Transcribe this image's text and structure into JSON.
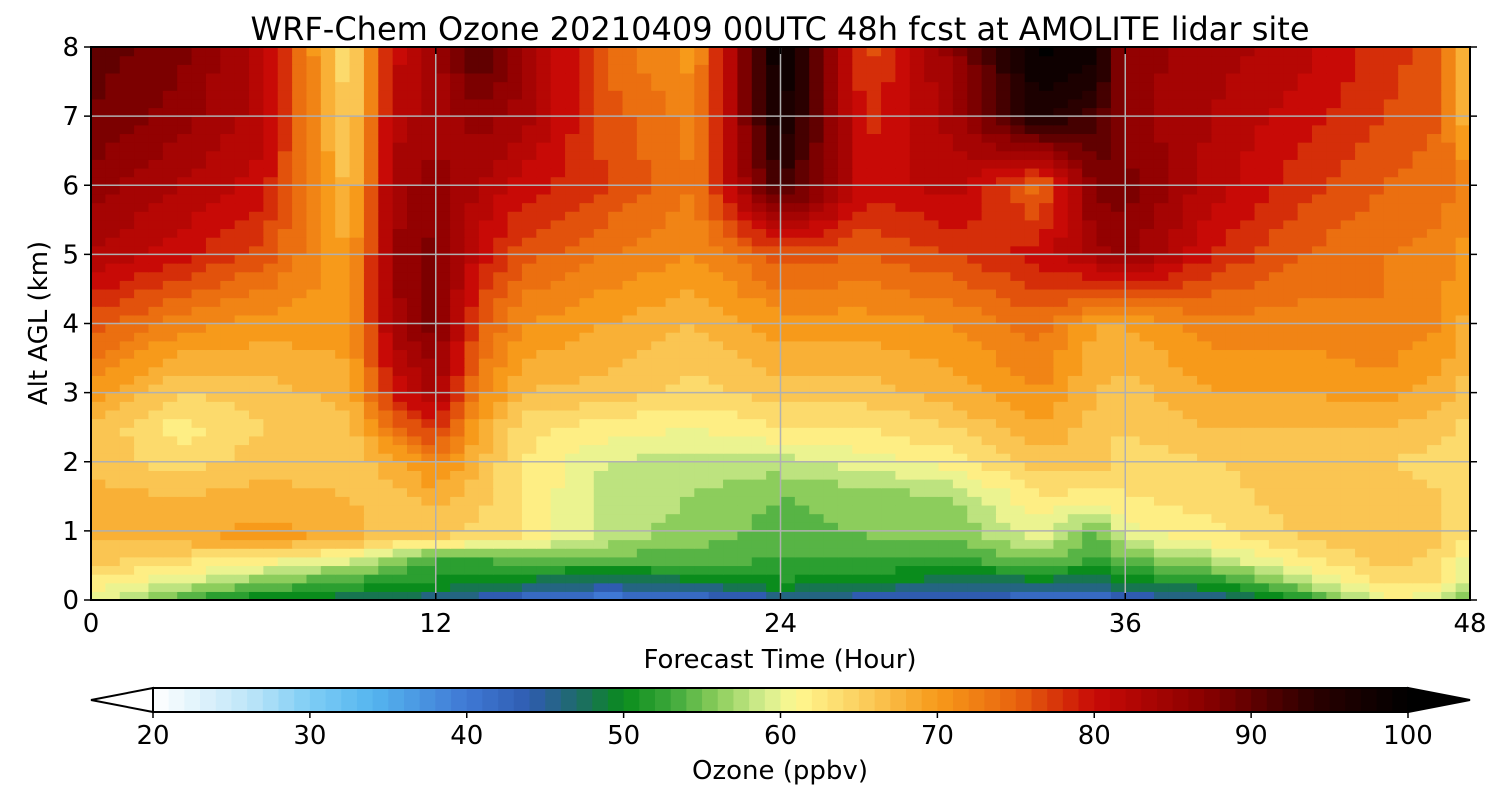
{
  "chart_data": {
    "type": "heatmap",
    "title": "WRF-Chem Ozone  20210409 00UTC 48h fcst at AMOLITE lidar site",
    "xlabel": "Forecast Time (Hour)",
    "ylabel": "Alt AGL (km)",
    "xlim": [
      0,
      48
    ],
    "ylim": [
      0,
      8
    ],
    "x_ticks": [
      "0",
      "12",
      "24",
      "36",
      "48"
    ],
    "y_ticks": [
      "0",
      "1",
      "2",
      "3",
      "4",
      "5",
      "6",
      "7",
      "8"
    ],
    "grid": true,
    "colorbar": {
      "label": "Ozone  (ppbv)",
      "orientation": "horizontal",
      "placement": "bottom",
      "range": [
        20,
        100
      ],
      "extend": "both",
      "ticks": [
        "20",
        "30",
        "40",
        "50",
        "60",
        "70",
        "80",
        "90",
        "100"
      ],
      "stops": [
        {
          "value": 20,
          "color": "#ffffff"
        },
        {
          "value": 26,
          "color": "#bfe6f8"
        },
        {
          "value": 30,
          "color": "#7ecdf5"
        },
        {
          "value": 34,
          "color": "#55b5ef"
        },
        {
          "value": 40,
          "color": "#3f78d4"
        },
        {
          "value": 44,
          "color": "#2f5cb0"
        },
        {
          "value": 47,
          "color": "#1e6a6a"
        },
        {
          "value": 50,
          "color": "#0a8c1c"
        },
        {
          "value": 53,
          "color": "#3ca83a"
        },
        {
          "value": 56,
          "color": "#8ccd5c"
        },
        {
          "value": 59,
          "color": "#d6ee90"
        },
        {
          "value": 61,
          "color": "#fff890"
        },
        {
          "value": 65,
          "color": "#fbd060"
        },
        {
          "value": 70,
          "color": "#f79a1a"
        },
        {
          "value": 75,
          "color": "#e8640e"
        },
        {
          "value": 80,
          "color": "#c80a06"
        },
        {
          "value": 87,
          "color": "#8a0000"
        },
        {
          "value": 94,
          "color": "#2a0000"
        },
        {
          "value": 100,
          "color": "#000000"
        }
      ]
    },
    "x": [
      0,
      3,
      6,
      9,
      10.5,
      12,
      13.5,
      15,
      18,
      21,
      24,
      27,
      30,
      33,
      35,
      36,
      39,
      42,
      45,
      47,
      48
    ],
    "y": [
      0,
      0.1,
      0.3,
      0.6,
      0.9,
      1.5,
      2,
      2.5,
      3,
      4,
      5,
      6,
      7,
      8
    ],
    "values": [
      [
        60,
        52,
        48,
        46,
        45,
        44,
        42,
        40,
        38,
        40,
        42,
        43,
        42,
        41,
        40,
        42,
        44,
        50,
        60,
        60,
        52
      ],
      [
        61,
        56,
        52,
        50,
        49,
        48,
        47,
        45,
        42,
        44,
        48,
        46,
        44,
        44,
        43,
        46,
        47,
        53,
        62,
        61,
        55
      ],
      [
        63,
        60,
        56,
        53,
        52,
        51,
        50,
        49,
        48,
        49,
        51,
        50,
        48,
        49,
        48,
        50,
        52,
        58,
        64,
        63,
        58
      ],
      [
        66,
        64,
        62,
        60,
        56,
        53,
        53,
        54,
        54,
        54,
        53,
        53,
        53,
        55,
        53,
        54,
        58,
        62,
        66,
        64,
        60
      ],
      [
        67,
        68,
        70,
        68,
        66,
        65,
        64,
        63,
        58,
        56,
        54,
        55,
        55,
        60,
        53,
        60,
        62,
        65,
        67,
        66,
        62
      ],
      [
        68,
        67,
        68,
        67,
        66,
        68,
        66,
        63,
        58,
        57,
        55,
        56,
        57,
        63,
        62,
        63,
        64,
        66,
        66,
        65,
        63
      ],
      [
        66,
        64,
        66,
        66,
        68,
        72,
        67,
        63,
        59,
        58,
        58,
        60,
        62,
        66,
        66,
        64,
        65,
        66,
        65,
        64,
        63
      ],
      [
        67,
        62,
        65,
        66,
        74,
        78,
        69,
        64,
        62,
        61,
        63,
        63,
        65,
        69,
        66,
        65,
        67,
        67,
        67,
        66,
        64
      ],
      [
        70,
        65,
        66,
        68,
        79,
        84,
        72,
        67,
        66,
        64,
        66,
        66,
        68,
        71,
        67,
        66,
        69,
        69,
        70,
        68,
        66
      ],
      [
        76,
        72,
        70,
        70,
        84,
        88,
        76,
        71,
        69,
        67,
        70,
        70,
        71,
        74,
        69,
        69,
        72,
        72,
        73,
        71,
        68
      ],
      [
        83,
        80,
        76,
        69,
        85,
        88,
        80,
        76,
        73,
        71,
        76,
        75,
        77,
        80,
        84,
        86,
        79,
        75,
        73,
        72,
        70
      ],
      [
        86,
        83,
        80,
        66,
        84,
        86,
        83,
        80,
        77,
        73,
        93,
        80,
        82,
        74,
        88,
        88,
        82,
        78,
        75,
        74,
        72
      ],
      [
        89,
        86,
        82,
        64,
        82,
        84,
        86,
        84,
        76,
        72,
        98,
        78,
        84,
        96,
        92,
        86,
        83,
        80,
        77,
        75,
        66
      ],
      [
        90,
        88,
        82,
        63,
        80,
        84,
        92,
        86,
        74,
        70,
        100,
        76,
        86,
        100,
        98,
        86,
        84,
        82,
        78,
        76,
        64
      ]
    ]
  }
}
